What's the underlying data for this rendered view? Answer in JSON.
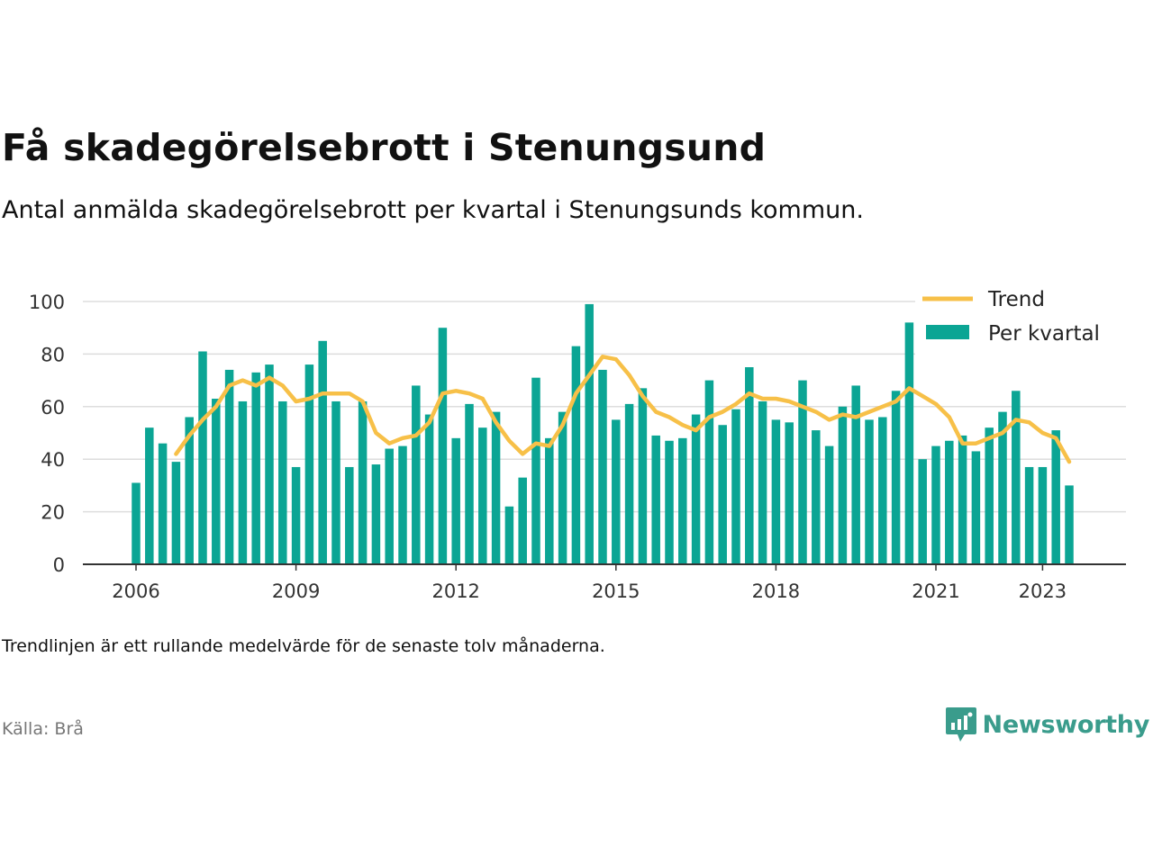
{
  "title": "Få skadegörelsebrott i Stenungsund",
  "subtitle": "Antal anmälda skadegörelsebrott per kvartal i Stenungsunds kommun.",
  "note": "Trendlinjen är ett rullande medelvärde för de senaste tolv månaderna.",
  "source": "Källa: Brå",
  "brand": {
    "name": "Newsworthy",
    "icon": "newsworthy-chart-bubble-icon"
  },
  "colors": {
    "bars": "#0ba594",
    "trend": "#f7c048",
    "brand": "#3a9c8c",
    "grid": "#dddddd",
    "axis": "#333333"
  },
  "chart_data": {
    "type": "bar",
    "x_axis": {
      "ticks": [
        "2006",
        "2009",
        "2012",
        "2015",
        "2018",
        "2021",
        "2023"
      ]
    },
    "y_axis": {
      "ticks": [
        "0",
        "20",
        "40",
        "60",
        "80",
        "100"
      ],
      "ylim": [
        0,
        100
      ]
    },
    "grid": true,
    "legend_position": "top-right",
    "start_quarter": "2006 Q1",
    "series": [
      {
        "name": "Per kvartal",
        "type": "bar",
        "values": [
          31,
          52,
          46,
          39,
          56,
          81,
          63,
          74,
          62,
          73,
          76,
          62,
          37,
          76,
          85,
          62,
          37,
          62,
          38,
          44,
          45,
          68,
          57,
          90,
          48,
          61,
          52,
          58,
          22,
          33,
          71,
          48,
          58,
          83,
          99,
          74,
          55,
          61,
          67,
          49,
          47,
          48,
          57,
          70,
          53,
          59,
          75,
          62,
          55,
          54,
          70,
          51,
          45,
          60,
          68,
          55,
          56,
          66,
          92,
          40,
          45,
          47,
          49,
          43,
          52,
          58,
          66,
          37,
          37,
          51,
          30
        ]
      },
      {
        "name": "Trend",
        "type": "line",
        "values": [
          null,
          null,
          null,
          42,
          49,
          55,
          60,
          68,
          70,
          68,
          71,
          68,
          62,
          63,
          65,
          65,
          65,
          62,
          50,
          46,
          48,
          49,
          54,
          65,
          66,
          65,
          63,
          54,
          47,
          42,
          46,
          45,
          53,
          65,
          72,
          79,
          78,
          72,
          64,
          58,
          56,
          53,
          51,
          56,
          58,
          61,
          65,
          63,
          63,
          62,
          60,
          58,
          55,
          57,
          56,
          58,
          60,
          62,
          67,
          64,
          61,
          56,
          46,
          46,
          48,
          50,
          55,
          54,
          50,
          48,
          39
        ]
      }
    ]
  }
}
